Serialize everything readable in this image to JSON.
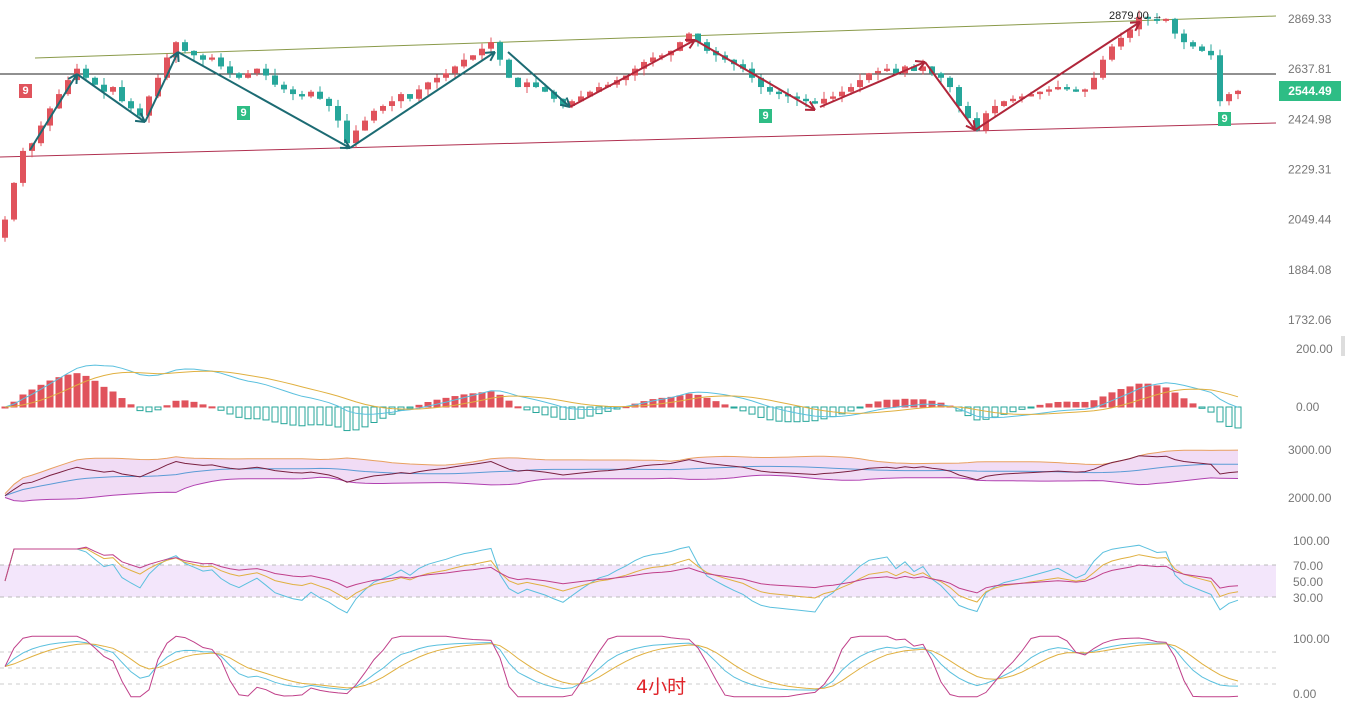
{
  "timeframe_label": "4小时",
  "current_price": "2544.49",
  "peak_label": "2879.00 →",
  "nine_marker": "9",
  "colors": {
    "up": "#e0535c",
    "down": "#26a69a",
    "price_badge": "#2ebd85",
    "up_arrows": "#b0263a",
    "down_arrows": "#1c6b73",
    "timeframe": "#e0252b"
  },
  "chart_data": {
    "type": "candlestick",
    "price_axis": {
      "scale": "log",
      "ticks": [
        "2869.33",
        "2637.81",
        "2424.98",
        "2229.31",
        "2049.44",
        "1884.08",
        "1732.06"
      ]
    },
    "closes": [
      2050,
      2180,
      2300,
      2330,
      2400,
      2470,
      2530,
      2590,
      2640,
      2600,
      2570,
      2540,
      2560,
      2500,
      2470,
      2440,
      2520,
      2600,
      2690,
      2760,
      2720,
      2700,
      2680,
      2690,
      2650,
      2620,
      2600,
      2620,
      2640,
      2610,
      2570,
      2550,
      2530,
      2520,
      2540,
      2510,
      2480,
      2420,
      2330,
      2380,
      2420,
      2460,
      2480,
      2500,
      2530,
      2510,
      2550,
      2580,
      2600,
      2620,
      2650,
      2680,
      2700,
      2730,
      2760,
      2680,
      2600,
      2560,
      2580,
      2560,
      2540,
      2510,
      2480,
      2500,
      2520,
      2540,
      2560,
      2570,
      2590,
      2610,
      2640,
      2670,
      2690,
      2700,
      2720,
      2760,
      2800,
      2760,
      2720,
      2700,
      2680,
      2660,
      2640,
      2600,
      2560,
      2540,
      2530,
      2520,
      2510,
      2500,
      2490,
      2510,
      2520,
      2540,
      2560,
      2590,
      2620,
      2630,
      2640,
      2620,
      2650,
      2630,
      2650,
      2620,
      2600,
      2560,
      2480,
      2430,
      2380,
      2450,
      2480,
      2500,
      2510,
      2520,
      2530,
      2540,
      2550,
      2560,
      2550,
      2540,
      2550,
      2600,
      2680,
      2740,
      2780,
      2820,
      2880,
      2870,
      2860,
      2870,
      2800,
      2760,
      2740,
      2720,
      2700,
      2500,
      2530,
      2544
    ],
    "macd_axis": [
      "200.00",
      "0.00"
    ],
    "band_axis": [
      "3000.00",
      "2000.00"
    ],
    "rsi_axis": [
      "100.00",
      "70.00",
      "50.00",
      "30.00"
    ],
    "kdj_axis": [
      "100.00",
      "0.00"
    ]
  }
}
